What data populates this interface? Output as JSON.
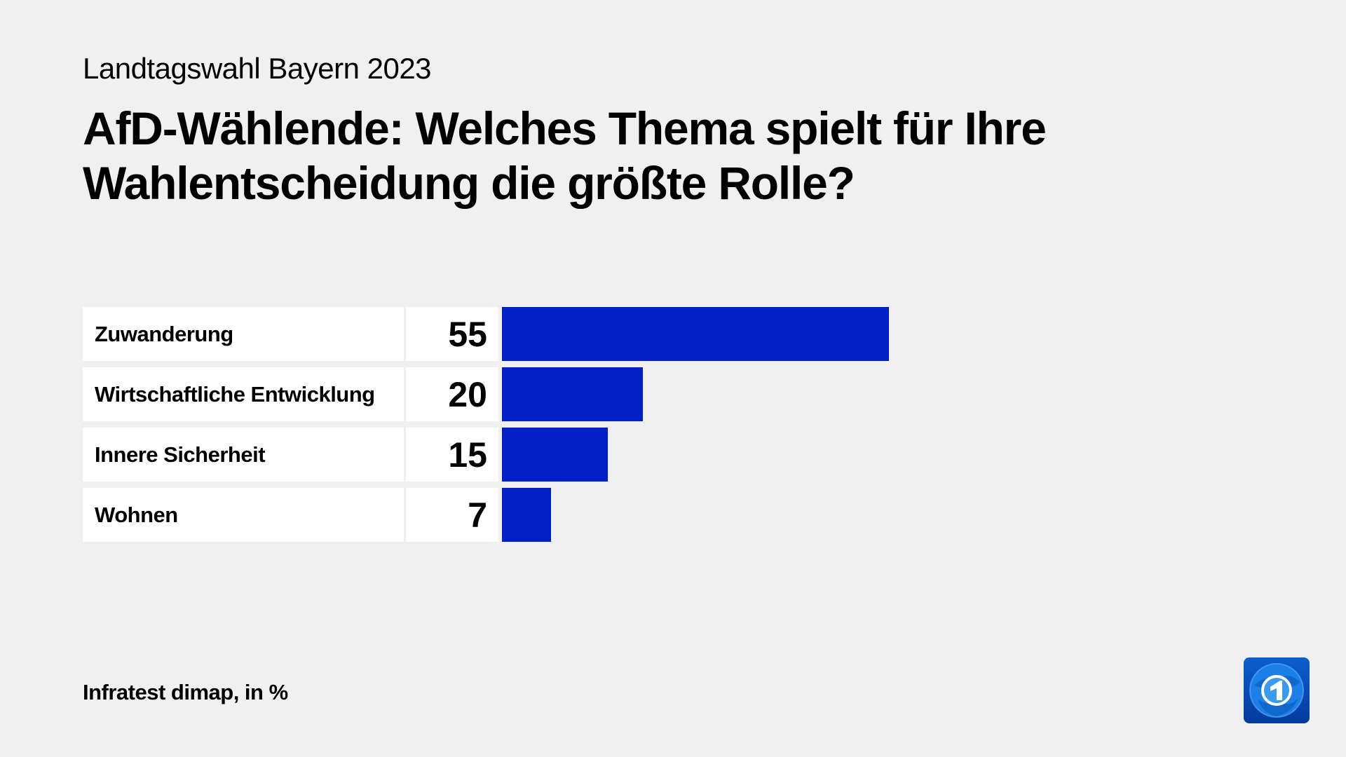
{
  "header": {
    "supertitle": "Landtagswahl Bayern 2023",
    "title": "AfD-Wählende: Welches Thema spielt für Ihre Wahlentscheidung die größte Rolle?"
  },
  "footer": {
    "source": "Infratest dimap, in %"
  },
  "logo": {
    "icon": "tagesschau-globe-1-logo"
  },
  "colors": {
    "bar": "#001fc7",
    "background": "#f0f0f0"
  },
  "chart_data": {
    "type": "bar",
    "orientation": "horizontal",
    "title": "AfD-Wählende: Welches Thema spielt für Ihre Wahlentscheidung die größte Rolle?",
    "categories": [
      "Zuwanderung",
      "Wirtschaftliche Entwicklung",
      "Innere Sicherheit",
      "Wohnen"
    ],
    "values": [
      55,
      20,
      15,
      7
    ],
    "unit": "%",
    "grid": false
  }
}
